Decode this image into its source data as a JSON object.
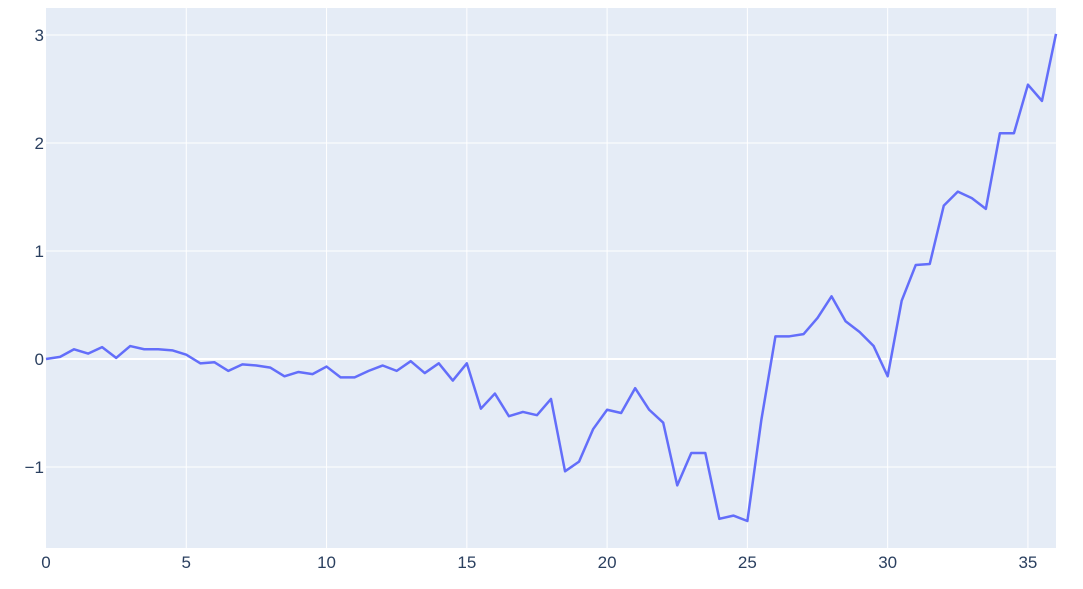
{
  "chart_data": {
    "type": "line",
    "title": "",
    "xlabel": "",
    "ylabel": "",
    "xlim": [
      0,
      36
    ],
    "ylim": [
      -1.75,
      3.25
    ],
    "grid": true,
    "x_ticks": [
      0,
      5,
      10,
      15,
      20,
      25,
      30,
      35
    ],
    "y_ticks": [
      -1,
      0,
      1,
      2,
      3
    ],
    "x_tick_labels": [
      "0",
      "5",
      "10",
      "15",
      "20",
      "25",
      "30",
      "35"
    ],
    "y_tick_labels": [
      "−1",
      "0",
      "1",
      "2",
      "3"
    ],
    "colors": {
      "plot_background": "#e5ecf6",
      "grid": "#ffffff",
      "line": "#636efa",
      "tick_text": "#2a3f5f"
    },
    "series": [
      {
        "x": [
          0,
          0.5,
          1,
          1.5,
          2,
          2.5,
          3,
          3.5,
          4,
          4.5,
          5,
          5.5,
          6,
          6.5,
          7,
          7.5,
          8,
          8.5,
          9,
          9.5,
          10,
          10.5,
          11,
          11.5,
          12,
          12.5,
          13,
          13.5,
          14,
          14.5,
          15,
          15.5,
          16,
          16.5,
          17,
          17.5,
          18,
          18.5,
          19,
          19.5,
          20,
          20.5,
          21,
          21.5,
          22,
          22.5,
          23,
          23.5,
          24,
          24.5,
          25,
          25.5,
          26,
          26.5,
          27,
          27.5,
          28,
          28.5,
          29,
          29.5,
          30,
          30.5,
          31,
          31.5,
          32,
          32.5,
          33,
          33.5,
          34,
          34.5,
          35,
          35.5,
          36
        ],
        "values": [
          0,
          0.02,
          0.09,
          0.05,
          0.11,
          0.01,
          0.12,
          0.09,
          0.09,
          0.08,
          0.04,
          -0.04,
          -0.03,
          -0.11,
          -0.05,
          -0.06,
          -0.08,
          -0.16,
          -0.12,
          -0.14,
          -0.07,
          -0.17,
          -0.17,
          -0.11,
          -0.06,
          -0.11,
          -0.02,
          -0.13,
          -0.04,
          -0.2,
          -0.04,
          -0.46,
          -0.32,
          -0.53,
          -0.49,
          -0.52,
          -0.37,
          -1.04,
          -0.95,
          -0.65,
          -0.47,
          -0.5,
          -0.27,
          -0.47,
          -0.59,
          -1.17,
          -0.87,
          -0.87,
          -1.48,
          -1.45,
          -1.5,
          -0.56,
          0.21,
          0.21,
          0.23,
          0.38,
          0.58,
          0.35,
          0.25,
          0.12,
          -0.16,
          0.54,
          0.87,
          0.88,
          1.42,
          1.55,
          1.49,
          1.39,
          2.09,
          2.09,
          2.54,
          2.39,
          3.01
        ]
      }
    ]
  }
}
